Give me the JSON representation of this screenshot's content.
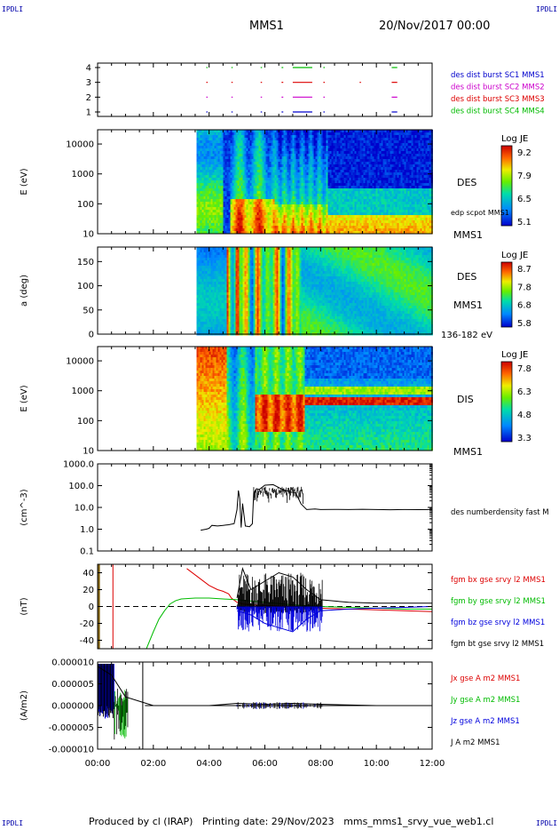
{
  "header": {
    "spacecraft": "MMS1",
    "date_time": "20/Nov/2017 00:00",
    "corner_tl": "IPDLI",
    "corner_tr": "IPDLI",
    "corner_bl": "IPDLI",
    "corner_br": "IPDLI"
  },
  "footer": {
    "produced_by": "Produced by cl (IRAP)",
    "printing_date": "Printing date: 29/Nov/2023",
    "file": "mms_mms1_srvy_vue_web1.cl"
  },
  "time_axis": {
    "ticks": [
      "00:00",
      "02:00",
      "04:00",
      "06:00",
      "08:00",
      "10:00",
      "12:00"
    ],
    "range_hours": [
      0,
      12
    ]
  },
  "chart_data": [
    {
      "type": "scatter",
      "id": "burst_availability",
      "yticks": [
        "4",
        "3",
        "2",
        "1"
      ],
      "legend": [
        "des dist burst SC1 MMS1",
        "des dist burst SC2 MMS2",
        "des dist burst SC3 MMS3",
        "des dist burst SC4 MMS4"
      ],
      "colors": [
        "#0000cc",
        "#cc00cc",
        "#dd0000",
        "#00bb00"
      ],
      "series": [
        {
          "name": "des dist burst SC4 MMS4",
          "level": 4,
          "intervals": [
            [
              3.9,
              3.92
            ],
            [
              4.8,
              4.84
            ],
            [
              5.85,
              5.88
            ],
            [
              6.6,
              6.66
            ],
            [
              7.0,
              7.7
            ],
            [
              8.1,
              8.15
            ],
            [
              10.55,
              10.75
            ]
          ]
        },
        {
          "name": "des dist burst SC3 MMS3",
          "level": 3,
          "intervals": [
            [
              3.9,
              3.92
            ],
            [
              4.8,
              4.84
            ],
            [
              5.85,
              5.88
            ],
            [
              6.6,
              6.66
            ],
            [
              7.0,
              7.7
            ],
            [
              8.1,
              8.15
            ],
            [
              9.4,
              9.42
            ],
            [
              10.55,
              10.75
            ]
          ]
        },
        {
          "name": "des dist burst SC2 MMS2",
          "level": 2,
          "intervals": [
            [
              3.9,
              3.92
            ],
            [
              4.8,
              4.84
            ],
            [
              5.85,
              5.88
            ],
            [
              6.6,
              6.66
            ],
            [
              7.0,
              7.7
            ],
            [
              8.1,
              8.15
            ],
            [
              10.55,
              10.75
            ]
          ]
        },
        {
          "name": "des dist burst SC1 MMS1",
          "level": 1,
          "intervals": [
            [
              3.9,
              3.92
            ],
            [
              4.8,
              4.84
            ],
            [
              5.85,
              5.88
            ],
            [
              6.6,
              6.66
            ],
            [
              7.0,
              7.7
            ],
            [
              8.1,
              8.15
            ],
            [
              10.55,
              10.75
            ]
          ]
        }
      ]
    },
    {
      "type": "heatmap",
      "id": "des_energy",
      "ylabel": "E (eV)",
      "yticks": [
        "10000",
        "1000",
        "100",
        "10"
      ],
      "ylim": [
        10,
        30000
      ],
      "log": true,
      "label": "DES",
      "label2": "MMS1",
      "side_label": "edp scpot MMS1",
      "colorbar": {
        "title": "Log JE",
        "ticks": [
          "9.2",
          "7.9",
          "6.5",
          "5.1"
        ],
        "range": [
          5.1,
          9.2
        ]
      }
    },
    {
      "type": "heatmap",
      "id": "des_pitch",
      "ylabel": "a (deg)",
      "yticks": [
        "150",
        "100",
        "50",
        "0"
      ],
      "ylim": [
        0,
        180
      ],
      "label": "DES",
      "label2": "MMS1",
      "side_label": "136-182 eV",
      "colorbar": {
        "title": "Log JE",
        "ticks": [
          "8.7",
          "7.8",
          "6.8",
          "5.8"
        ],
        "range": [
          5.8,
          8.7
        ]
      }
    },
    {
      "type": "heatmap",
      "id": "dis_energy",
      "ylabel": "E (eV)",
      "yticks": [
        "10000",
        "1000",
        "100",
        "10"
      ],
      "ylim": [
        10,
        30000
      ],
      "log": true,
      "label": "DIS",
      "label2": "MMS1",
      "colorbar": {
        "title": "Log JE",
        "ticks": [
          "7.8",
          "6.3",
          "4.8",
          "3.3"
        ],
        "range": [
          3.3,
          7.8
        ]
      }
    },
    {
      "type": "line",
      "id": "density",
      "ylabel": "(cm^-3)",
      "yticks": [
        "1000.0",
        "100.0",
        "10.0",
        "1.0",
        "0.1"
      ],
      "ylim": [
        0.1,
        1000
      ],
      "log": true,
      "legend": [
        "des numberdensity fast M"
      ],
      "series": [
        {
          "name": "des numberdensity fast M",
          "x": [
            3.7,
            3.9,
            4.0,
            4.1,
            4.3,
            4.5,
            4.7,
            4.9,
            5.0,
            5.05,
            5.1,
            5.15,
            5.2,
            5.3,
            5.45,
            5.55,
            5.6,
            5.7,
            5.8,
            6.0,
            6.3,
            6.6,
            6.9,
            7.1,
            7.3,
            7.5,
            7.8,
            8.0,
            8.5,
            9.0,
            9.5,
            10.0,
            10.5,
            11.0,
            11.5,
            12.0
          ],
          "y": [
            0.9,
            1.0,
            1.1,
            1.5,
            1.4,
            1.5,
            1.6,
            1.8,
            8,
            60,
            25,
            1.2,
            15,
            1.4,
            1.3,
            1.5,
            45,
            70,
            55,
            80,
            90,
            75,
            60,
            40,
            12,
            8,
            8.5,
            8.0,
            8.1,
            8.0,
            8.2,
            8.0,
            7.8,
            8.0,
            7.9,
            8.0
          ]
        }
      ]
    },
    {
      "type": "line",
      "id": "magnetic_field",
      "ylabel": "(nT)",
      "yticks": [
        "40",
        "20",
        "0",
        "-20",
        "-40"
      ],
      "ylim": [
        -50,
        50
      ],
      "legend": [
        "fgm bx gse srvy l2 MMS1",
        "fgm by gse srvy l2 MMS1",
        "fgm bz gse srvy l2 MMS1",
        "fgm bt gse srvy l2 MMS1"
      ],
      "colors": [
        "#dd0000",
        "#00bb00",
        "#0000dd",
        "#000000"
      ],
      "series": [
        {
          "name": "fgm bx gse srvy l2 MMS1",
          "x": [
            3.2,
            3.6,
            4.0,
            4.3,
            4.5,
            4.7,
            4.8,
            5.0,
            5.2,
            5.5,
            6.0,
            7.0,
            8.0,
            9.0,
            10.0,
            11.0,
            12.0
          ],
          "y": [
            45,
            35,
            25,
            20,
            18,
            15,
            10,
            5,
            3,
            2,
            1,
            0,
            -2,
            -3,
            -4,
            -5,
            -6
          ]
        },
        {
          "name": "fgm by gse srvy l2 MMS1",
          "x": [
            1.75,
            2.0,
            2.2,
            2.4,
            2.6,
            2.8,
            3.0,
            3.5,
            4.0,
            4.5,
            5.0,
            6.0,
            7.0,
            8.0,
            9.0,
            10.0,
            11.0,
            12.0
          ],
          "y": [
            -50,
            -30,
            -15,
            -5,
            3,
            7,
            9,
            10,
            10,
            9,
            8,
            5,
            2,
            0,
            -1,
            -2,
            -3,
            -3
          ]
        },
        {
          "name": "fgm bz gse srvy l2 MMS1",
          "x": [
            5.0,
            5.5,
            6.0,
            6.5,
            7.0,
            7.5,
            8.0,
            9.0,
            10.0,
            11.0,
            12.0
          ],
          "y": [
            -5,
            -10,
            -20,
            -25,
            -30,
            -15,
            -5,
            -3,
            -2,
            -1,
            0
          ]
        },
        {
          "name": "fgm bt gse srvy l2 MMS1",
          "x": [
            5.0,
            5.2,
            5.5,
            6.0,
            6.5,
            7.0,
            7.5,
            8.0,
            9.0,
            10.0,
            11.0,
            12.0
          ],
          "y": [
            10,
            45,
            20,
            30,
            40,
            35,
            20,
            8,
            5,
            4,
            4,
            4
          ]
        }
      ]
    },
    {
      "type": "line",
      "id": "current_density",
      "ylabel": "(A/m2)",
      "yticks": [
        "0.000010",
        "0.000005",
        "0.000000",
        "-0.000005",
        "-0.000010"
      ],
      "ylim": [
        -1e-05,
        1e-05
      ],
      "legend": [
        "Jx gse A m2 MMS1",
        "Jy gse A m2 MMS1",
        "Jz gse A m2 MMS1",
        "J A m2 MMS1"
      ],
      "colors": [
        "#dd0000",
        "#00bb00",
        "#0000dd",
        "#000000"
      ],
      "series": [
        {
          "name": "J A m2 MMS1",
          "x": [
            0.0,
            0.5,
            1.0,
            1.5,
            2.0,
            4.0,
            5.0,
            6.0,
            7.0,
            8.0,
            10.0,
            12.0
          ],
          "y": [
            9e-06,
            7e-06,
            2e-06,
            1e-06,
            0.0,
            0.0,
            5e-07,
            3e-07,
            5e-07,
            3e-07,
            0.0,
            0.0
          ]
        }
      ]
    }
  ]
}
